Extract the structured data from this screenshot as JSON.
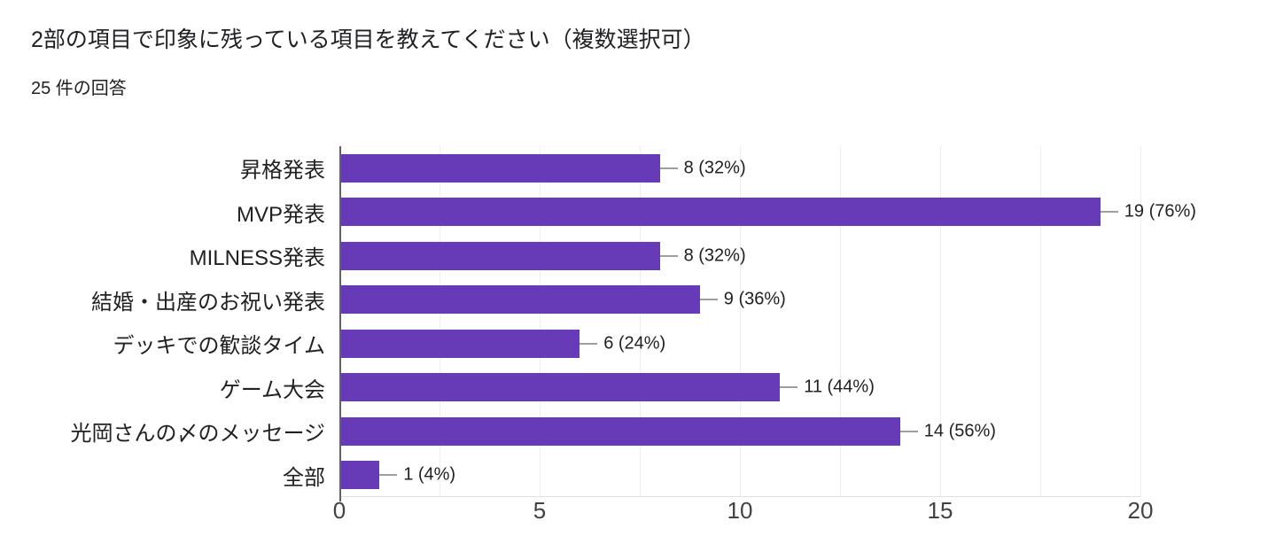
{
  "header": {
    "title": "2部の項目で印象に残っている項目を教えてください（複数選択可）",
    "response_count": "25 件の回答"
  },
  "colors": {
    "bar": "#673ab7",
    "title_text": "#202124",
    "category_text": "#212121",
    "tick_text": "#424242",
    "gridline": "#efefef",
    "baseline": "#e0e0e0",
    "axis_line": "#616161",
    "callout_line": "#9e9e9e"
  },
  "chart_data": {
    "type": "bar",
    "orientation": "horizontal",
    "title": "2部の項目で印象に残っている項目を教えてください（複数選択可）",
    "subtitle": "25 件の回答",
    "categories": [
      "昇格発表",
      "MVP発表",
      "MILNESS発表",
      "結婚・出産のお祝い発表",
      "デッキでの歓談タイム",
      "ゲーム大会",
      "光岡さんの〆のメッセージ",
      "全部"
    ],
    "values": [
      8,
      19,
      8,
      9,
      6,
      11,
      14,
      1
    ],
    "data_labels": [
      "8 (32%)",
      "19 (76%)",
      "8 (32%)",
      "9 (36%)",
      "6 (24%)",
      "11 (44%)",
      "14 (56%)",
      "1 (4%)"
    ],
    "total_responses": 25,
    "xlim": [
      0,
      20
    ],
    "x_ticks": [
      0,
      5,
      10,
      15,
      20
    ],
    "minor_grid_step": 2.5,
    "grid": true,
    "legend": "none"
  }
}
